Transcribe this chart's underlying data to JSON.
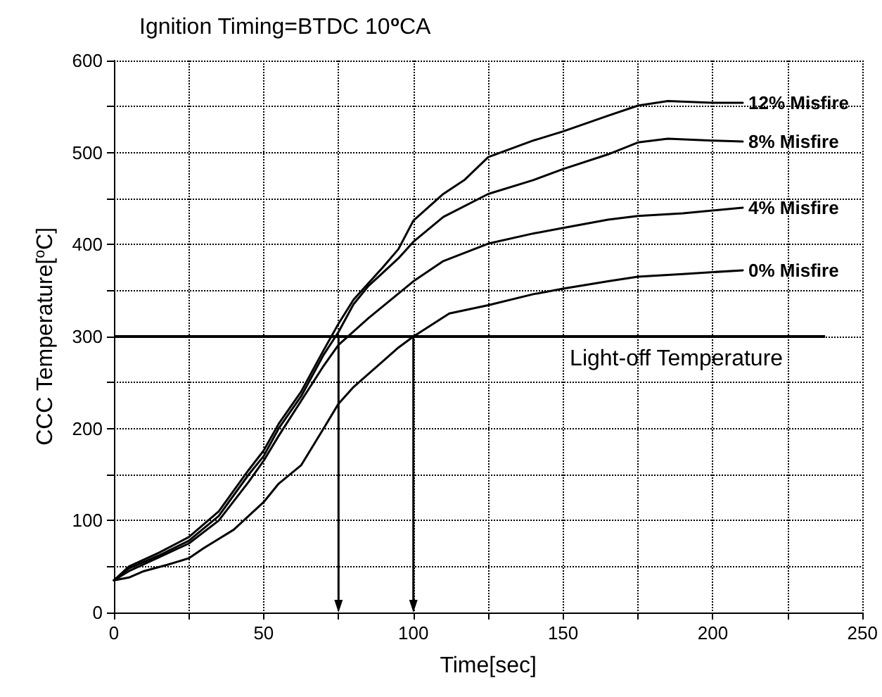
{
  "chart_data": {
    "type": "line",
    "title": "Ignition Timing=BTDC 10$^{o}$CA",
    "xlabel": "Time[sec]",
    "ylabel": "CCC Temperature[$^{o}$C]",
    "xlim": [
      0,
      250
    ],
    "xticks": [
      0,
      {
        "value": 25,
        "label": null
      },
      50,
      {
        "value": 75,
        "label": null
      },
      100,
      {
        "value": 125,
        "label": null
      },
      150,
      {
        "value": 175,
        "label": null
      },
      200,
      {
        "value": 225,
        "label": null
      },
      250
    ],
    "ylim": [
      0,
      600
    ],
    "yticks": [
      0,
      {
        "value": 50,
        "label": null
      },
      100,
      {
        "value": 150,
        "label": null
      },
      200,
      {
        "value": 250,
        "label": null
      },
      300,
      {
        "value": 350,
        "label": null
      },
      400,
      {
        "value": 450,
        "label": null
      },
      500,
      {
        "value": 550,
        "label": null
      },
      600
    ],
    "grid": true,
    "legend": false,
    "marker": "none",
    "line_style": "solid",
    "series": [
      {
        "name": "12% Misfire",
        "color": "#000000",
        "x": [
          0,
          5,
          15,
          25,
          35,
          45,
          50,
          55,
          62.5,
          70,
          75,
          80,
          85,
          90,
          95,
          100,
          110,
          117,
          125,
          140,
          150,
          165,
          175,
          185,
          200,
          210
        ],
        "values": [
          35,
          50,
          65,
          82,
          110,
          155,
          176,
          205,
          240,
          285,
          314,
          340,
          358,
          376,
          395,
          426,
          455,
          470,
          495,
          513,
          523,
          540,
          551,
          556,
          554,
          554
        ]
      },
      {
        "name": "8% Misfire",
        "color": "#000000",
        "x": [
          0,
          5,
          15,
          25,
          35,
          45,
          50,
          55,
          62.5,
          70,
          75,
          80,
          85,
          90,
          95,
          100,
          110,
          125,
          140,
          150,
          165,
          175,
          185,
          200,
          210
        ],
        "values": [
          35,
          48,
          62,
          78,
          105,
          150,
          170,
          200,
          235,
          280,
          305,
          335,
          355,
          370,
          385,
          403,
          430,
          455,
          470,
          482,
          498,
          511,
          515,
          513,
          512
        ]
      },
      {
        "name": "4% Misfire",
        "color": "#000000",
        "x": [
          0,
          5,
          15,
          25,
          35,
          45,
          50,
          55,
          62.5,
          70,
          75,
          85,
          100,
          110,
          125,
          140,
          150,
          165,
          175,
          190,
          210
        ],
        "values": [
          35,
          45,
          60,
          75,
          100,
          142,
          165,
          192,
          230,
          268,
          291,
          320,
          360,
          382,
          401,
          412,
          418,
          427,
          431,
          434,
          440
        ]
      },
      {
        "name": "0% Misfire",
        "color": "#000000",
        "x": [
          0,
          5,
          10,
          18,
          25,
          30,
          40,
          50,
          55,
          62.5,
          70,
          75,
          80,
          87,
          95,
          100,
          112,
          125,
          140,
          150,
          165,
          175,
          190,
          210
        ],
        "values": [
          35,
          38,
          45,
          52,
          59,
          70,
          90,
          120,
          140,
          160,
          200,
          227,
          245,
          265,
          288,
          300,
          325,
          334,
          346,
          352,
          360,
          365,
          368,
          372
        ]
      }
    ],
    "ref_lines": [
      {
        "axis": "y",
        "value": 300,
        "label": "Light-off Temperature",
        "color": "#000000",
        "line_style": "solid"
      },
      {
        "axis": "x",
        "value": 75,
        "color": "#000000",
        "line_style": "solid"
      },
      {
        "axis": "x",
        "value": 100,
        "color": "#000000",
        "line_style": "solid"
      }
    ]
  }
}
